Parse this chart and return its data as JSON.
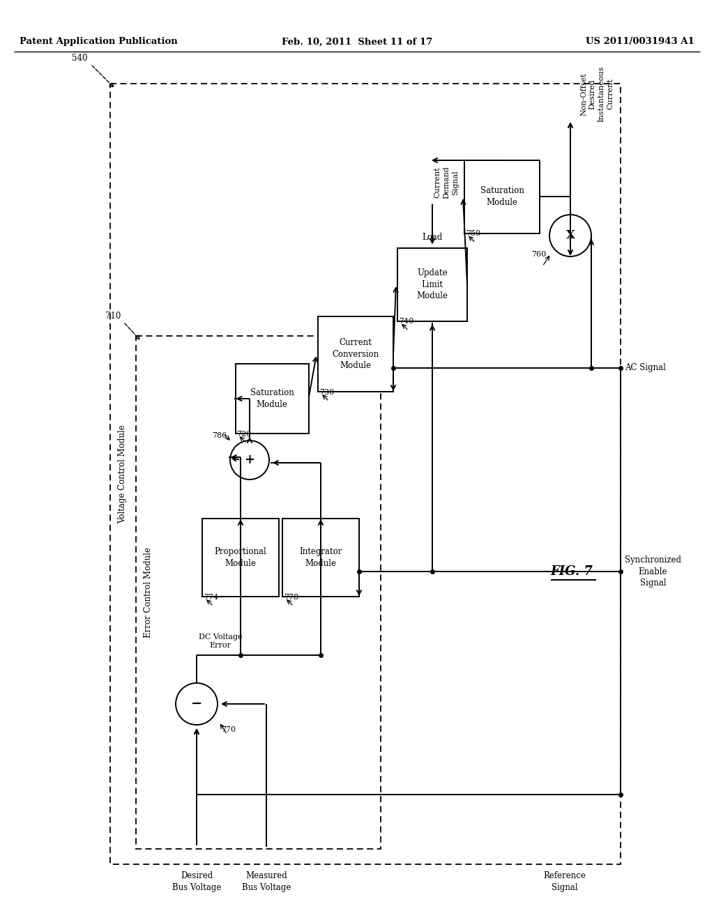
{
  "header_left": "Patent Application Publication",
  "header_mid": "Feb. 10, 2011  Sheet 11 of 17",
  "header_right": "US 2011/0031943 A1",
  "background": "#ffffff",
  "fig7_label": "FIG. 7",
  "outer_num": "540",
  "outer_mod": "Voltage Control Module",
  "inner_num": "710",
  "inner_mod": "Error Control Module",
  "sub_num": "770",
  "pro_num": "774",
  "int_num": "778",
  "sum_num": "786",
  "s720_num": "720",
  "cc_num": "730",
  "ul_num": "740",
  "s750_num": "750",
  "mul_num": "760",
  "label_desired": "Desired\nBus Voltage",
  "label_measured": "Measured\nBus Voltage",
  "label_reference": "Reference\nSignal",
  "label_ac": "AC Signal",
  "label_sync": "Synchronized\nEnable\nSignal",
  "label_load": "Load",
  "label_demand": "Current\nDemand\nSignal",
  "label_output": "Non-Offset\nDesired\nInstantaneous\nCurrent",
  "label_dc_err": "DC Voltage\nError"
}
